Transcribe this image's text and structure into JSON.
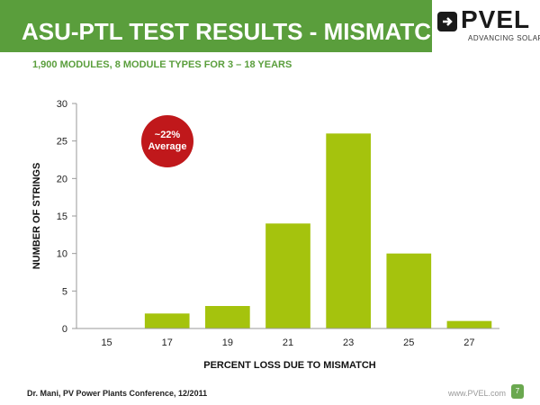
{
  "header": {
    "title": "ASU-PTL TEST RESULTS - MISMATCH",
    "logo_text": "PVEL",
    "logo_tagline": "ADVANCING SOLAR",
    "logo_icon": "plug-icon",
    "background_color": "#5a9e3c"
  },
  "subtitle": "1,900 MODULES, 8 MODULE TYPES FOR 3 – 18 YEARS",
  "annotation": {
    "line1": "~22%",
    "line2": "Average",
    "color": "#c0181b"
  },
  "footer": {
    "citation": "Dr. Mani, PV Power Plants Conference, 12/2011",
    "url": "www.PVEL.com",
    "page_number": "7"
  },
  "chart_data": {
    "type": "bar",
    "title": "",
    "xlabel": "PERCENT LOSS DUE TO MISMATCH",
    "ylabel": "NUMBER OF STRINGS",
    "categories": [
      "15",
      "17",
      "19",
      "21",
      "23",
      "25",
      "27"
    ],
    "values": [
      0,
      2,
      3,
      14,
      26,
      10,
      1
    ],
    "ylim": [
      0,
      30
    ],
    "yticks": [
      0,
      5,
      10,
      15,
      20,
      25,
      30
    ],
    "bar_color": "#a5c30d",
    "grid": false,
    "legend": "none"
  }
}
